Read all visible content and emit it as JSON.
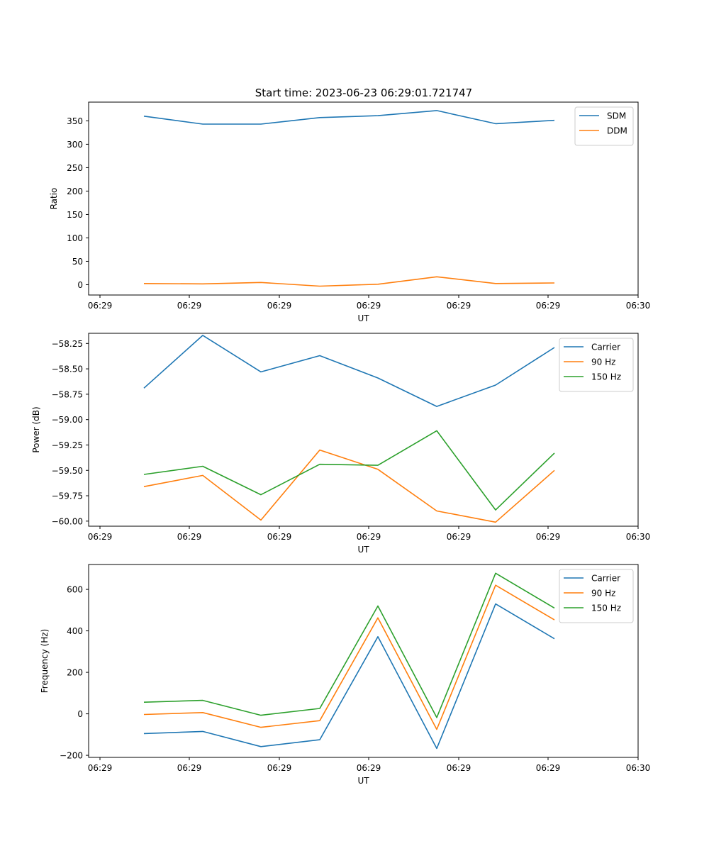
{
  "figure": {
    "title": "Start time: 2023-06-23 06:29:01.721747"
  },
  "chart_data": [
    {
      "type": "line",
      "xlabel": "UT",
      "ylabel": "Ratio",
      "x_tick_labels": [
        "06:29",
        "06:29",
        "06:29",
        "06:29",
        "06:29",
        "06:29",
        "06:30"
      ],
      "y_ticks": [
        0,
        50,
        100,
        150,
        200,
        250,
        300,
        350
      ],
      "ylim": [
        -22,
        390
      ],
      "grid": false,
      "legend": "top-right",
      "series": [
        {
          "name": "SDM",
          "color": "#1f77b4",
          "values": [
            360,
            343,
            343,
            357,
            361,
            372,
            344,
            351
          ]
        },
        {
          "name": "DDM",
          "color": "#ff7f0e",
          "values": [
            2.5,
            1.8,
            4.8,
            -3,
            1,
            17,
            2.5,
            3.8
          ]
        }
      ]
    },
    {
      "type": "line",
      "xlabel": "UT",
      "ylabel": "Power (dB)",
      "x_tick_labels": [
        "06:29",
        "06:29",
        "06:29",
        "06:29",
        "06:29",
        "06:29",
        "06:30"
      ],
      "y_ticks": [
        -60.0,
        -59.75,
        -59.5,
        -59.25,
        -59.0,
        -58.75,
        -58.5,
        -58.25
      ],
      "y_tick_labels": [
        "−60.00",
        "−59.75",
        "−59.50",
        "−59.25",
        "−59.00",
        "−58.75",
        "−58.50",
        "−58.25"
      ],
      "ylim": [
        -60.05,
        -58.15
      ],
      "grid": false,
      "legend": "top-right",
      "series": [
        {
          "name": "Carrier",
          "color": "#1f77b4",
          "values": [
            -58.69,
            -58.17,
            -58.53,
            -58.37,
            -58.59,
            -58.87,
            -58.66,
            -58.29
          ]
        },
        {
          "name": "90 Hz",
          "color": "#ff7f0e",
          "values": [
            -59.66,
            -59.55,
            -59.99,
            -59.3,
            -59.49,
            -59.9,
            -60.01,
            -59.5
          ]
        },
        {
          "name": "150 Hz",
          "color": "#2ca02c",
          "values": [
            -59.54,
            -59.46,
            -59.74,
            -59.44,
            -59.45,
            -59.11,
            -59.89,
            -59.33
          ]
        }
      ]
    },
    {
      "type": "line",
      "xlabel": "UT",
      "ylabel": "Frequency (Hz)",
      "x_tick_labels": [
        "06:29",
        "06:29",
        "06:29",
        "06:29",
        "06:29",
        "06:29",
        "06:30"
      ],
      "y_ticks": [
        -200,
        0,
        200,
        400,
        600
      ],
      "y_tick_labels": [
        "−200",
        "0",
        "200",
        "400",
        "600"
      ],
      "ylim": [
        -210,
        720
      ],
      "grid": false,
      "legend": "top-right",
      "series": [
        {
          "name": "Carrier",
          "color": "#1f77b4",
          "values": [
            -95,
            -85,
            -158,
            -125,
            372,
            -167,
            530,
            362
          ]
        },
        {
          "name": "90 Hz",
          "color": "#ff7f0e",
          "values": [
            -3,
            6,
            -65,
            -33,
            463,
            -75,
            620,
            453
          ]
        },
        {
          "name": "150 Hz",
          "color": "#2ca02c",
          "values": [
            56,
            65,
            -7,
            26,
            520,
            -18,
            678,
            510
          ]
        }
      ]
    }
  ]
}
